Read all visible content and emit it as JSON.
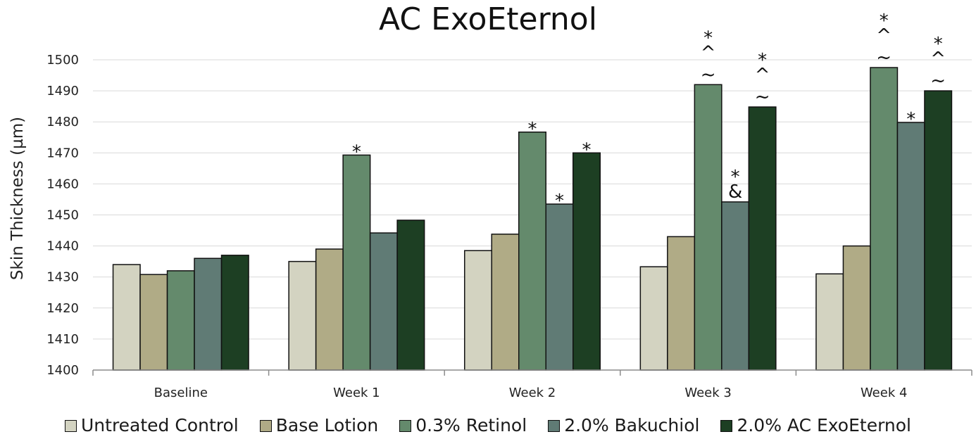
{
  "chart_data": {
    "type": "bar",
    "title": "AC ExoEternol",
    "xlabel": "",
    "ylabel": "Skin Thickness (µm)",
    "ylim": [
      1400,
      1500
    ],
    "yticks": [
      1400,
      1410,
      1420,
      1430,
      1440,
      1450,
      1460,
      1470,
      1480,
      1490,
      1500
    ],
    "grid": true,
    "legend_position": "bottom",
    "categories": [
      "Baseline",
      "Week 1",
      "Week 2",
      "Week 3",
      "Week 4"
    ],
    "series": [
      {
        "name": "Untreated Control",
        "color": "#d3d3c1",
        "values": [
          1434,
          1435,
          1438.5,
          1433.3,
          1431
        ]
      },
      {
        "name": "Base Lotion",
        "color": "#b0ab86",
        "values": [
          1430.8,
          1439,
          1443.8,
          1443,
          1440
        ]
      },
      {
        "name": "0.3% Retinol",
        "color": "#648a6c",
        "values": [
          1432,
          1469.3,
          1476.7,
          1492,
          1497.5
        ]
      },
      {
        "name": "2.0% Bakuchiol",
        "color": "#607b75",
        "values": [
          1436,
          1444.2,
          1453.5,
          1454.2,
          1479.8
        ]
      },
      {
        "name": "2.0% AC ExoEternol",
        "color": "#1d3f23",
        "values": [
          1437,
          1448.3,
          1470,
          1484.8,
          1490
        ]
      }
    ],
    "annotations": [
      {
        "category": "Week 1",
        "series": "0.3% Retinol",
        "marks": [
          "*"
        ]
      },
      {
        "category": "Week 2",
        "series": "0.3% Retinol",
        "marks": [
          "*"
        ]
      },
      {
        "category": "Week 2",
        "series": "2.0% Bakuchiol",
        "marks": [
          "*"
        ]
      },
      {
        "category": "Week 2",
        "series": "2.0% AC ExoEternol",
        "marks": [
          "*"
        ]
      },
      {
        "category": "Week 3",
        "series": "0.3% Retinol",
        "marks": [
          "*",
          "^",
          "~"
        ]
      },
      {
        "category": "Week 3",
        "series": "2.0% Bakuchiol",
        "marks": [
          "*",
          "&"
        ]
      },
      {
        "category": "Week 3",
        "series": "2.0% AC ExoEternol",
        "marks": [
          "*",
          "^",
          "~"
        ]
      },
      {
        "category": "Week 4",
        "series": "0.3% Retinol",
        "marks": [
          "*",
          "^",
          "~"
        ]
      },
      {
        "category": "Week 4",
        "series": "2.0% Bakuchiol",
        "marks": [
          "*"
        ]
      },
      {
        "category": "Week 4",
        "series": "2.0% AC ExoEternol",
        "marks": [
          "*",
          "^",
          "~"
        ]
      }
    ]
  }
}
